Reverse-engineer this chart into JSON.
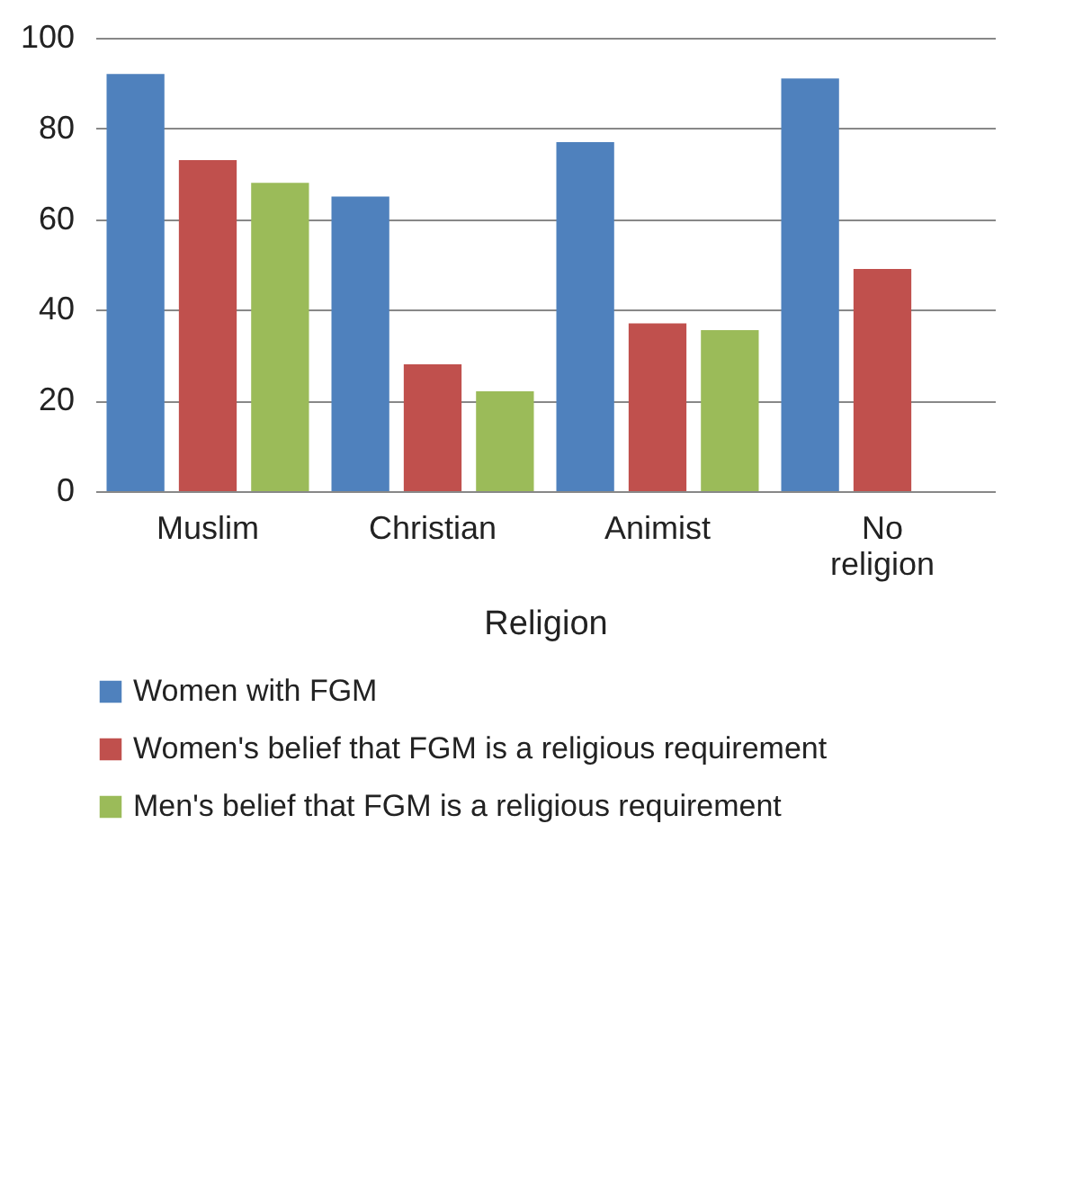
{
  "chart_data": {
    "type": "bar",
    "xlabel": "Religion",
    "categories": [
      "Muslim",
      "Christian",
      "Animist",
      "No religion"
    ],
    "series": [
      {
        "name": "Women with FGM",
        "color": "#4f81bd",
        "values": [
          92,
          65,
          77,
          91
        ]
      },
      {
        "name": "Women's belief that FGM is a religious requirement",
        "color": "#c0504d",
        "values": [
          73,
          28,
          37,
          49
        ]
      },
      {
        "name": "Men's belief that FGM is a religious requirement",
        "color": "#9bbb59",
        "values": [
          68,
          22,
          35.5,
          null
        ]
      }
    ],
    "ylim": [
      0,
      100
    ],
    "yticks": [
      0,
      20,
      40,
      60,
      80,
      100
    ],
    "grid": "y",
    "legend": "bottom"
  }
}
